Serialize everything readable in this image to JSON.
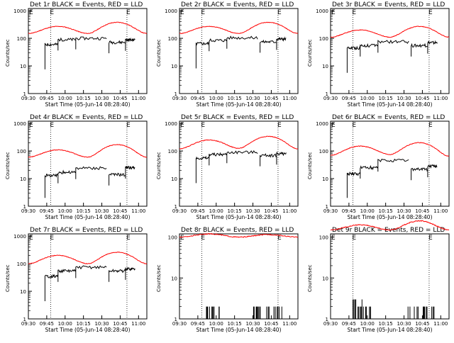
{
  "chart_data": [
    {
      "type": "line",
      "detector": "1r",
      "title": "Det 1r BLACK = Events, RED = LLD",
      "ylabel": "Counts/sec",
      "xlabel": "Start Time (05-Jun-14 08:28:40)",
      "xticks": [
        "09:30",
        "09:45",
        "10:00",
        "10:15",
        "10:30",
        "10:45",
        "11:00"
      ],
      "yticks": [
        "1",
        "10",
        "100",
        "1000"
      ],
      "ylim": [
        1,
        1200
      ],
      "event_markers": [
        "E",
        "E"
      ],
      "series": [
        {
          "name": "Events",
          "color": "#000000",
          "levels": [
            60,
            90,
            100,
            72,
            88
          ]
        },
        {
          "name": "LLD",
          "color": "#ff0000",
          "levels": [
            150,
            270,
            150,
            380,
            150
          ]
        }
      ]
    },
    {
      "type": "line",
      "detector": "2r",
      "title": "Det 2r BLACK = Events, RED = LLD",
      "ylabel": "Counts/sec",
      "xlabel": "Start Time (05-Jun-14 08:28:40)",
      "xticks": [
        "09:30",
        "09:45",
        "10:00",
        "10:15",
        "10:30",
        "10:45",
        "11:00"
      ],
      "yticks": [
        "1",
        "10",
        "100",
        "1000"
      ],
      "ylim": [
        1,
        1200
      ],
      "event_markers": [
        "E",
        "E"
      ],
      "series": [
        {
          "name": "Events",
          "color": "#000000",
          "levels": [
            65,
            85,
            105,
            75,
            95
          ]
        },
        {
          "name": "LLD",
          "color": "#ff0000",
          "levels": [
            150,
            270,
            150,
            380,
            150
          ]
        }
      ]
    },
    {
      "type": "line",
      "detector": "3r",
      "title": "Det 3r BLACK = Events, RED = LLD",
      "ylabel": "Counts/sec",
      "xlabel": "Start Time (05-Jun-14 08:28:40)",
      "xticks": [
        "09:30",
        "09:45",
        "10:00",
        "10:15",
        "10:30",
        "10:45",
        "11:00"
      ],
      "yticks": [
        "1",
        "10",
        "100",
        "1000"
      ],
      "ylim": [
        1,
        1200
      ],
      "event_markers": [
        "E",
        "E"
      ],
      "series": [
        {
          "name": "Events",
          "color": "#000000",
          "levels": [
            45,
            55,
            75,
            55,
            70
          ]
        },
        {
          "name": "LLD",
          "color": "#ff0000",
          "levels": [
            110,
            200,
            110,
            270,
            110
          ]
        }
      ]
    },
    {
      "type": "line",
      "detector": "4r",
      "title": "Det 4r BLACK = Events, RED = LLD",
      "ylabel": "Counts/sec",
      "xlabel": "Start Time (05-Jun-14 08:28:40)",
      "xticks": [
        "09:30",
        "09:45",
        "10:00",
        "10:15",
        "10:30",
        "10:45",
        "11:00"
      ],
      "yticks": [
        "1",
        "10",
        "100",
        "1000"
      ],
      "ylim": [
        1,
        1200
      ],
      "event_markers": [
        "E",
        "E"
      ],
      "series": [
        {
          "name": "Events",
          "color": "#000000",
          "levels": [
            13,
            17,
            24,
            14,
            25
          ]
        },
        {
          "name": "LLD",
          "color": "#ff0000",
          "levels": [
            60,
            110,
            60,
            170,
            60
          ]
        }
      ]
    },
    {
      "type": "line",
      "detector": "5r",
      "title": "Det 5r BLACK = Events, RED = LLD",
      "ylabel": "Counts/sec",
      "xlabel": "Start Time (05-Jun-14 08:28:40)",
      "xticks": [
        "09:30",
        "09:45",
        "10:00",
        "10:15",
        "10:30",
        "10:45",
        "11:00"
      ],
      "yticks": [
        "1",
        "10",
        "100",
        "1000"
      ],
      "ylim": [
        1,
        1200
      ],
      "event_markers": [
        "E",
        "E"
      ],
      "series": [
        {
          "name": "Events",
          "color": "#000000",
          "levels": [
            55,
            75,
            90,
            70,
            80
          ]
        },
        {
          "name": "LLD",
          "color": "#ff0000",
          "levels": [
            120,
            250,
            125,
            340,
            120
          ]
        }
      ]
    },
    {
      "type": "line",
      "detector": "6r",
      "title": "Det 6r BLACK = Events, RED = LLD",
      "ylabel": "Counts/sec",
      "xlabel": "Start Time (05-Jun-14 08:28:40)",
      "xticks": [
        "09:30",
        "09:45",
        "10:00",
        "10:15",
        "10:30",
        "10:45",
        "11:00"
      ],
      "yticks": [
        "1",
        "10",
        "100",
        "1000"
      ],
      "ylim": [
        1,
        1200
      ],
      "event_markers": [
        "E",
        "E"
      ],
      "series": [
        {
          "name": "Events",
          "color": "#000000",
          "levels": [
            15,
            25,
            45,
            22,
            28
          ]
        },
        {
          "name": "LLD",
          "color": "#ff0000",
          "levels": [
            70,
            150,
            75,
            200,
            65
          ]
        }
      ]
    },
    {
      "type": "line",
      "detector": "7r",
      "title": "Det 7r BLACK = Events, RED = LLD",
      "ylabel": "Counts/sec",
      "xlabel": "Start Time (05-Jun-14 08:28:40)",
      "xticks": [
        "09:30",
        "09:45",
        "10:00",
        "10:15",
        "10:30",
        "10:45",
        "11:00"
      ],
      "yticks": [
        "1",
        "10",
        "100",
        "1000"
      ],
      "ylim": [
        1,
        1200
      ],
      "event_markers": [
        "E",
        "E"
      ],
      "series": [
        {
          "name": "Events",
          "color": "#000000",
          "levels": [
            35,
            55,
            75,
            55,
            65
          ]
        },
        {
          "name": "LLD",
          "color": "#ff0000",
          "levels": [
            100,
            200,
            100,
            260,
            100
          ]
        }
      ]
    },
    {
      "type": "line",
      "detector": "8r",
      "title": "Det 8r BLACK = Events, RED = LLD",
      "ylabel": "Counts/sec",
      "xlabel": "Start Time (05-Jun-14 08:28:40)",
      "xticks": [
        "09:30",
        "09:45",
        "10:00",
        "10:15",
        "10:30",
        "10:45",
        "11:00"
      ],
      "yticks": [
        "1",
        "10",
        "100"
      ],
      "ylim": [
        1,
        120
      ],
      "event_markers": [
        "E",
        "E"
      ],
      "series": [
        {
          "name": "Events",
          "color": "#000000",
          "levels": [
            1,
            1.5,
            1,
            1,
            2
          ]
        },
        {
          "name": "LLD",
          "color": "#ff0000",
          "levels": [
            100,
            120,
            100,
            115,
            100
          ]
        }
      ]
    },
    {
      "type": "line",
      "detector": "9r",
      "title": "Det 9r BLACK = Events, RED = LLD",
      "ylabel": "Counts/sec",
      "xlabel": "Start Time (05-Jun-14 08:28:40)",
      "xticks": [
        "09:30",
        "09:45",
        "10:00",
        "10:15",
        "10:30",
        "10:45",
        "11:00"
      ],
      "yticks": [
        "1",
        "10",
        "100"
      ],
      "ylim": [
        1,
        120
      ],
      "event_markers": [
        "E",
        "E"
      ],
      "series": [
        {
          "name": "Events",
          "color": "#000000",
          "levels": [
            1,
            2,
            1,
            1,
            2.5
          ]
        },
        {
          "name": "LLD",
          "color": "#ff0000",
          "levels": [
            150,
            200,
            150,
            250,
            150
          ]
        }
      ]
    }
  ]
}
